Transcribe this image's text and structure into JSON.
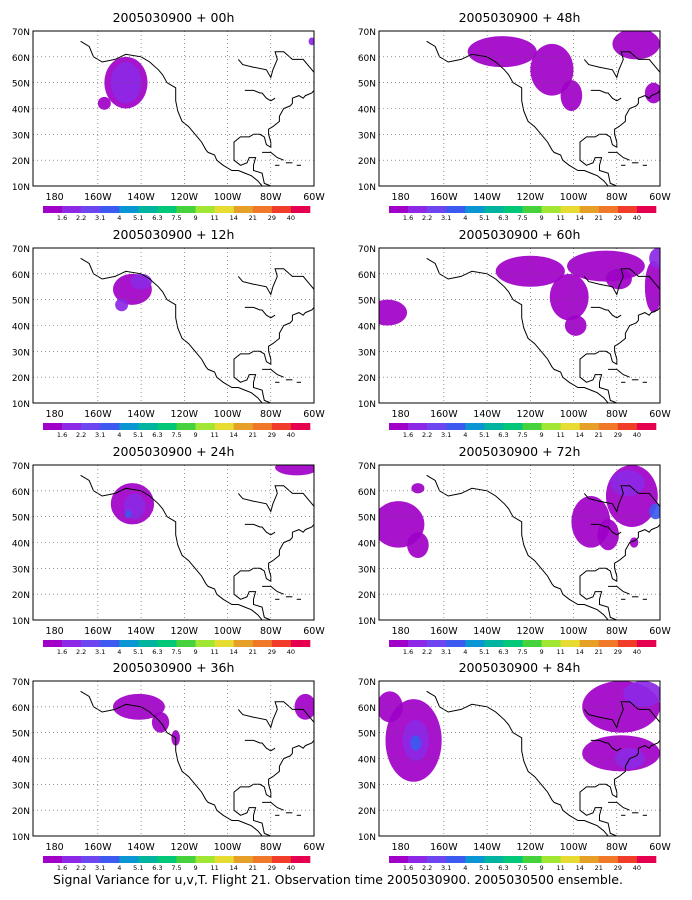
{
  "chart_data": {
    "type": "heatmap",
    "caption": "Signal Variance for u,v,T. Flight 21. Observation time 2005030900. 2005030500 ensemble.",
    "x_ticks": [
      "180",
      "160W",
      "140W",
      "120W",
      "100W",
      "80W",
      "60W"
    ],
    "y_ticks": [
      "10N",
      "20N",
      "30N",
      "40N",
      "50N",
      "60N",
      "70N"
    ],
    "xlim": [
      -190,
      -60
    ],
    "ylim": [
      10,
      70
    ],
    "grid": true,
    "colorbar": {
      "labels": [
        "1.6",
        "2.2",
        "3.1",
        "4",
        "5.1",
        "6.3",
        "7.5",
        "9",
        "11",
        "14",
        "21",
        "29",
        "40"
      ],
      "colors": [
        "#a000c8",
        "#8c28e6",
        "#6e46f0",
        "#3c5af0",
        "#0a96d2",
        "#00b4a0",
        "#00c878",
        "#46d23c",
        "#a0e632",
        "#e6dc32",
        "#e6a028",
        "#f07828",
        "#f03c28",
        "#e60050"
      ]
    },
    "panels": [
      {
        "title": "2005030900 + 00h",
        "regions": [
          {
            "lon": -147,
            "lat": 50,
            "rx": 10,
            "ry": 10,
            "level": 0
          },
          {
            "lon": -147,
            "lat": 50,
            "rx": 7,
            "ry": 8,
            "level": 1
          },
          {
            "lon": -157,
            "lat": 42,
            "rx": 3,
            "ry": 2.5,
            "level": 0
          },
          {
            "lon": -61,
            "lat": 66,
            "rx": 1.5,
            "ry": 1.5,
            "level": 1
          }
        ]
      },
      {
        "title": "2005030900 + 48h",
        "regions": [
          {
            "lon": -133,
            "lat": 62,
            "rx": 16,
            "ry": 6,
            "level": 0
          },
          {
            "lon": -110,
            "lat": 55,
            "rx": 10,
            "ry": 10,
            "level": 0
          },
          {
            "lon": -101,
            "lat": 45,
            "rx": 5,
            "ry": 6,
            "level": 0
          },
          {
            "lon": -71,
            "lat": 65,
            "rx": 11,
            "ry": 6,
            "level": 0
          },
          {
            "lon": -63,
            "lat": 46,
            "rx": 4,
            "ry": 4,
            "level": 0
          }
        ]
      },
      {
        "title": "2005030900 + 12h",
        "regions": [
          {
            "lon": -144,
            "lat": 54,
            "rx": 9,
            "ry": 6,
            "level": 0
          },
          {
            "lon": -140,
            "lat": 57,
            "rx": 5,
            "ry": 3,
            "level": 1
          },
          {
            "lon": -149,
            "lat": 48,
            "rx": 3,
            "ry": 2.5,
            "level": 1
          }
        ]
      },
      {
        "title": "2005030900 + 60h",
        "regions": [
          {
            "lon": -186,
            "lat": 45,
            "rx": 9,
            "ry": 5,
            "level": 0
          },
          {
            "lon": -120,
            "lat": 61,
            "rx": 16,
            "ry": 6,
            "level": 0
          },
          {
            "lon": -102,
            "lat": 51,
            "rx": 9,
            "ry": 9,
            "level": 0
          },
          {
            "lon": -99,
            "lat": 40,
            "rx": 5,
            "ry": 4,
            "level": 0
          },
          {
            "lon": -85,
            "lat": 63,
            "rx": 18,
            "ry": 6,
            "level": 0
          },
          {
            "lon": -79,
            "lat": 58,
            "rx": 6,
            "ry": 4,
            "level": 0
          },
          {
            "lon": -63,
            "lat": 55,
            "rx": 4,
            "ry": 10,
            "level": 0
          },
          {
            "lon": -61,
            "lat": 66,
            "rx": 4,
            "ry": 4,
            "level": 1
          }
        ]
      },
      {
        "title": "2005030900 + 24h",
        "regions": [
          {
            "lon": -144,
            "lat": 55,
            "rx": 10,
            "ry": 8,
            "level": 0
          },
          {
            "lon": -143,
            "lat": 54,
            "rx": 5,
            "ry": 5,
            "level": 1
          },
          {
            "lon": -146,
            "lat": 51,
            "rx": 1.5,
            "ry": 1.5,
            "level": 3
          },
          {
            "lon": -68,
            "lat": 69,
            "rx": 10,
            "ry": 3,
            "level": 0
          }
        ]
      },
      {
        "title": "2005030900 + 72h",
        "regions": [
          {
            "lon": -181,
            "lat": 47,
            "rx": 12,
            "ry": 9,
            "level": 0
          },
          {
            "lon": -172,
            "lat": 39,
            "rx": 5,
            "ry": 5,
            "level": 0
          },
          {
            "lon": -172,
            "lat": 61,
            "rx": 3,
            "ry": 2,
            "level": 0
          },
          {
            "lon": -92,
            "lat": 48,
            "rx": 9,
            "ry": 10,
            "level": 0
          },
          {
            "lon": -84,
            "lat": 43,
            "rx": 5,
            "ry": 6,
            "level": 0
          },
          {
            "lon": -73,
            "lat": 58,
            "rx": 12,
            "ry": 12,
            "level": 0
          },
          {
            "lon": -75,
            "lat": 63,
            "rx": 8,
            "ry": 5,
            "level": 1
          },
          {
            "lon": -62,
            "lat": 52,
            "rx": 3,
            "ry": 3,
            "level": 3
          },
          {
            "lon": -72,
            "lat": 40,
            "rx": 2,
            "ry": 2,
            "level": 0
          }
        ]
      },
      {
        "title": "2005030900 + 36h",
        "regions": [
          {
            "lon": -141,
            "lat": 60,
            "rx": 12,
            "ry": 5,
            "level": 0
          },
          {
            "lon": -131,
            "lat": 54,
            "rx": 4,
            "ry": 4,
            "level": 0
          },
          {
            "lon": -124,
            "lat": 48,
            "rx": 2,
            "ry": 3,
            "level": 0
          },
          {
            "lon": -64,
            "lat": 60,
            "rx": 5,
            "ry": 5,
            "level": 0
          }
        ]
      },
      {
        "title": "2005030900 + 84h",
        "regions": [
          {
            "lon": -174,
            "lat": 47,
            "rx": 13,
            "ry": 16,
            "level": 0
          },
          {
            "lon": -173,
            "lat": 47,
            "rx": 6,
            "ry": 8,
            "level": 1
          },
          {
            "lon": -173,
            "lat": 46,
            "rx": 2.5,
            "ry": 3,
            "level": 3
          },
          {
            "lon": -185,
            "lat": 60,
            "rx": 6,
            "ry": 6,
            "level": 0
          },
          {
            "lon": -78,
            "lat": 60,
            "rx": 18,
            "ry": 10,
            "level": 0
          },
          {
            "lon": -68,
            "lat": 65,
            "rx": 9,
            "ry": 5,
            "level": 1
          },
          {
            "lon": -78,
            "lat": 42,
            "rx": 18,
            "ry": 7,
            "level": 0
          },
          {
            "lon": -74,
            "lat": 40,
            "rx": 7,
            "ry": 4,
            "level": 1
          }
        ]
      }
    ]
  }
}
